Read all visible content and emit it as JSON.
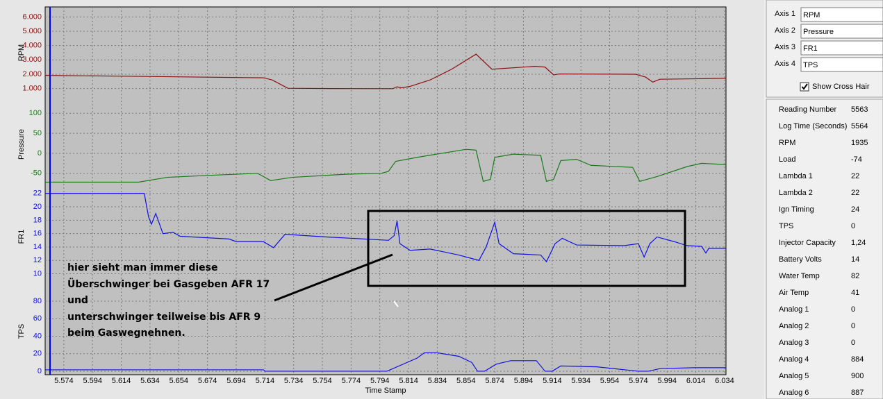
{
  "chart_data": [
    {
      "type": "line",
      "ylabel": "RPM",
      "color": "#8b1010",
      "grid": true,
      "xlim": [
        5.561,
        6.035
      ],
      "ylim": [
        400,
        6600
      ],
      "yticks": [
        {
          "value": 1000,
          "label": "1.000"
        },
        {
          "value": 2000,
          "label": "2.000"
        },
        {
          "value": 3000,
          "label": "3.000"
        },
        {
          "value": 4000,
          "label": "4.000"
        },
        {
          "value": 5000,
          "label": "5.000"
        },
        {
          "value": 6000,
          "label": "6.000"
        }
      ],
      "x": [
        5.561,
        5.626,
        5.713,
        5.719,
        5.73,
        5.76,
        5.803,
        5.806,
        5.809,
        5.815,
        5.829,
        5.844,
        5.861,
        5.872,
        5.902,
        5.909,
        5.915,
        5.919,
        5.972,
        5.979,
        5.984,
        5.989,
        6.013,
        6.035
      ],
      "values": [
        1920,
        1850,
        1750,
        1600,
        1020,
        1000,
        990,
        1120,
        1050,
        1150,
        1600,
        2350,
        3400,
        2350,
        2550,
        2500,
        1950,
        2020,
        2000,
        1800,
        1450,
        1650,
        1680,
        1720
      ]
    },
    {
      "type": "line",
      "ylabel": "Pressure",
      "color": "#1a7a1a",
      "grid": true,
      "xlim": [
        5.561,
        6.035
      ],
      "ylim": [
        -85,
        130
      ],
      "yticks": [
        -50,
        0,
        50,
        100
      ],
      "x": [
        5.561,
        5.626,
        5.646,
        5.675,
        5.709,
        5.718,
        5.733,
        5.771,
        5.795,
        5.8,
        5.805,
        5.82,
        5.854,
        5.861,
        5.866,
        5.871,
        5.874,
        5.887,
        5.906,
        5.91,
        5.915,
        5.92,
        5.931,
        5.941,
        5.97,
        5.975,
        5.987,
        6.008,
        6.018,
        6.035
      ],
      "values": [
        -72,
        -72,
        -60,
        -55,
        -50,
        -68,
        -60,
        -52,
        -50,
        -45,
        -20,
        -10,
        10,
        8,
        -70,
        -65,
        -10,
        -2,
        -5,
        -70,
        -65,
        -18,
        -15,
        -30,
        -35,
        -70,
        -58,
        -33,
        -25,
        -28
      ]
    },
    {
      "type": "line",
      "ylabel": "FR1",
      "color": "#1010e0",
      "grid": true,
      "xlim": [
        5.561,
        6.035
      ],
      "ylim": [
        8.4,
        22.7
      ],
      "yticks": [
        10,
        12,
        14,
        16,
        18,
        20,
        22
      ],
      "x": [
        5.561,
        5.63,
        5.633,
        5.635,
        5.638,
        5.643,
        5.65,
        5.655,
        5.689,
        5.694,
        5.713,
        5.72,
        5.728,
        5.757,
        5.8,
        5.804,
        5.806,
        5.808,
        5.815,
        5.829,
        5.849,
        5.863,
        5.868,
        5.874,
        5.877,
        5.887,
        5.906,
        5.91,
        5.916,
        5.921,
        5.931,
        5.964,
        5.974,
        5.978,
        5.982,
        5.987,
        5.999,
        6.008,
        6.018,
        6.021,
        6.023,
        6.035
      ],
      "values": [
        22,
        22,
        18.5,
        17.4,
        19,
        16,
        16.2,
        15.6,
        15.2,
        14.8,
        14.8,
        13.9,
        15.9,
        15.5,
        15,
        15.7,
        17.9,
        14.5,
        13.5,
        13.7,
        12.8,
        12,
        14,
        17.7,
        14.5,
        13,
        12.8,
        11.8,
        14.5,
        15.3,
        14.3,
        14.2,
        14.5,
        12.5,
        14.5,
        15.5,
        14.8,
        14.2,
        14.1,
        13.1,
        13.8,
        13.8
      ]
    },
    {
      "type": "line",
      "ylabel": "TPS",
      "xlabel": "Time Stamp",
      "color": "#1010e0",
      "grid": true,
      "xlim": [
        5.561,
        6.035
      ],
      "ylim": [
        -4,
        95
      ],
      "yticks": [
        0,
        20,
        40,
        60,
        80
      ],
      "xticks": [
        5.574,
        5.594,
        5.614,
        5.634,
        5.654,
        5.674,
        5.694,
        5.714,
        5.734,
        5.754,
        5.774,
        5.794,
        5.814,
        5.834,
        5.854,
        5.874,
        5.894,
        5.914,
        5.934,
        5.954,
        5.974,
        5.994,
        6.014,
        6.034
      ],
      "x": [
        5.561,
        5.713,
        5.714,
        5.799,
        5.82,
        5.825,
        5.834,
        5.849,
        5.858,
        5.862,
        5.867,
        5.875,
        5.885,
        5.903,
        5.909,
        5.914,
        5.92,
        5.945,
        5.974,
        5.981,
        5.989,
        6.013,
        6.035
      ],
      "values": [
        1.6,
        1.6,
        0,
        0,
        15,
        21,
        21,
        17,
        10,
        0,
        0,
        8,
        12,
        12,
        0,
        0,
        6,
        5,
        0,
        0,
        3,
        4,
        4
      ]
    }
  ],
  "annotation": {
    "lines": [
      "hier sieht man immer diese",
      "Überschwinger bei Gasgeben AFR 17",
      "und",
      "unterschwinger teilweise bis AFR 9",
      "beim Gaswegnehnen."
    ]
  },
  "sidebar": {
    "axes": [
      {
        "label": "Axis 1",
        "value": "RPM"
      },
      {
        "label": "Axis 2",
        "value": "Pressure"
      },
      {
        "label": "Axis 3",
        "value": "FR1"
      },
      {
        "label": "Axis 4",
        "value": "TPS"
      }
    ],
    "crosshair": {
      "label": "Show Cross Hair",
      "checked": true
    },
    "readings": [
      {
        "name": "Reading Number",
        "value": 5563
      },
      {
        "name": "Log Time (Seconds)",
        "value": 5564
      },
      {
        "name": "RPM",
        "value": 1935
      },
      {
        "name": "Load",
        "value": -74
      },
      {
        "name": "Lambda 1",
        "value": 22
      },
      {
        "name": "Lambda 2",
        "value": 22
      },
      {
        "name": "Ign Timing",
        "value": 24
      },
      {
        "name": "TPS",
        "value": 0
      },
      {
        "name": "Injector Capacity",
        "value": "1,24"
      },
      {
        "name": "Battery Volts",
        "value": 14
      },
      {
        "name": "Water Temp",
        "value": 82
      },
      {
        "name": "Air Temp",
        "value": 41
      },
      {
        "name": "Analog 1",
        "value": 0
      },
      {
        "name": "Analog 2",
        "value": 0
      },
      {
        "name": "Analog 3",
        "value": 0
      },
      {
        "name": "Analog 4",
        "value": 884
      },
      {
        "name": "Analog 5",
        "value": 900
      },
      {
        "name": "Analog 6",
        "value": 887
      }
    ]
  }
}
